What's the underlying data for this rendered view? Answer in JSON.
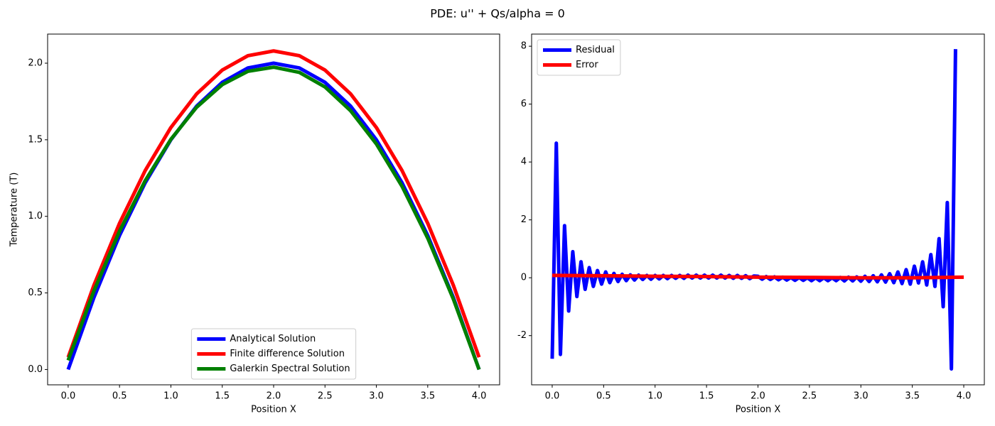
{
  "title": "PDE: u'' + Qs/alpha = 0",
  "chart_data": [
    {
      "type": "line",
      "xlabel": "Position X",
      "ylabel": "Temperature (T)",
      "xlim": [
        -0.2,
        4.2
      ],
      "ylim": [
        -0.1,
        2.19
      ],
      "xticks": [
        {
          "value": 0,
          "label": "0.0"
        },
        0.5,
        {
          "value": 1,
          "label": "1.0"
        },
        1.5,
        {
          "value": 2,
          "label": "2.0"
        },
        2.5,
        {
          "value": 3,
          "label": "3.0"
        },
        3.5,
        {
          "value": 4,
          "label": "4.0"
        }
      ],
      "yticks": [
        {
          "value": 0,
          "label": "0.0"
        },
        0.5,
        {
          "value": 1,
          "label": "1.0"
        },
        1.5,
        {
          "value": 2,
          "label": "2.0"
        }
      ],
      "legend": "lower center",
      "series": [
        {
          "name": "Analytical Solution",
          "color": "#0000ff",
          "x": [
            0,
            0.25,
            0.5,
            0.75,
            1,
            1.25,
            1.5,
            1.75,
            2,
            2.25,
            2.5,
            2.75,
            3,
            3.25,
            3.5,
            3.75,
            4
          ],
          "values": [
            0,
            0.469,
            0.875,
            1.219,
            1.5,
            1.719,
            1.875,
            1.969,
            2,
            1.969,
            1.875,
            1.719,
            1.5,
            1.219,
            0.875,
            0.469,
            0
          ]
        },
        {
          "name": "Finite difference Solution",
          "color": "#ff0000",
          "x": [
            0,
            0.25,
            0.5,
            0.75,
            1,
            1.25,
            1.5,
            1.75,
            2,
            2.25,
            2.5,
            2.75,
            3,
            3.25,
            3.5,
            3.75,
            4
          ],
          "values": [
            0.08,
            0.549,
            0.955,
            1.299,
            1.58,
            1.799,
            1.955,
            2.049,
            2.08,
            2.049,
            1.955,
            1.799,
            1.58,
            1.299,
            0.955,
            0.549,
            0.08
          ]
        },
        {
          "name": "Galerkin Spectral Solution",
          "color": "#008000",
          "x": [
            0,
            0.25,
            0.5,
            0.75,
            1,
            1.25,
            1.5,
            1.75,
            2,
            2.25,
            2.5,
            2.75,
            3,
            3.25,
            3.5,
            3.75,
            4
          ],
          "values": [
            0.06,
            0.512,
            0.903,
            1.233,
            1.503,
            1.712,
            1.86,
            1.947,
            1.974,
            1.94,
            1.845,
            1.689,
            1.473,
            1.196,
            0.858,
            0.459,
            0
          ]
        }
      ]
    },
    {
      "type": "line",
      "xlabel": "Position X",
      "xlim": [
        -0.2,
        4.2
      ],
      "ylim": [
        -3.7,
        8.42
      ],
      "xticks": [
        {
          "value": 0,
          "label": "0.0"
        },
        0.5,
        {
          "value": 1,
          "label": "1.0"
        },
        1.5,
        {
          "value": 2,
          "label": "2.0"
        },
        2.5,
        {
          "value": 3,
          "label": "3.0"
        },
        3.5,
        {
          "value": 4,
          "label": "4.0"
        }
      ],
      "yticks": [
        -2,
        0,
        2,
        4,
        6,
        8
      ],
      "legend": "upper left",
      "series": [
        {
          "name": "Residual",
          "color": "#0000ff",
          "x": [
            0,
            0.04,
            0.08,
            0.12,
            0.16,
            0.2,
            0.24,
            0.28,
            0.32,
            0.36,
            0.4,
            0.44,
            0.48,
            0.52,
            0.56,
            0.6,
            0.64,
            0.68,
            0.72,
            0.76,
            0.8,
            0.84,
            0.88,
            0.92,
            0.96,
            1,
            1.04,
            1.08,
            1.12,
            1.16,
            1.2,
            1.24,
            1.28,
            1.32,
            1.36,
            1.4,
            1.44,
            1.48,
            1.52,
            1.56,
            1.6,
            1.64,
            1.68,
            1.72,
            1.76,
            1.8,
            1.84,
            1.88,
            1.92,
            1.96,
            2,
            2.04,
            2.08,
            2.12,
            2.16,
            2.2,
            2.24,
            2.28,
            2.32,
            2.36,
            2.4,
            2.44,
            2.48,
            2.52,
            2.56,
            2.6,
            2.64,
            2.68,
            2.72,
            2.76,
            2.8,
            2.84,
            2.88,
            2.92,
            2.96,
            3,
            3.04,
            3.08,
            3.12,
            3.16,
            3.2,
            3.24,
            3.28,
            3.32,
            3.36,
            3.4,
            3.44,
            3.48,
            3.52,
            3.56,
            3.6,
            3.64,
            3.68,
            3.72,
            3.76,
            3.8,
            3.84,
            3.88,
            3.92
          ],
          "values": [
            -2.8,
            4.65,
            -2.65,
            1.8,
            -1.15,
            0.9,
            -0.65,
            0.55,
            -0.4,
            0.35,
            -0.3,
            0.25,
            -0.22,
            0.2,
            -0.17,
            0.15,
            -0.13,
            0.12,
            -0.1,
            0.1,
            -0.08,
            0.09,
            -0.06,
            0.08,
            -0.05,
            0.08,
            -0.04,
            0.08,
            -0.03,
            0.08,
            -0.02,
            0.08,
            -0.02,
            0.09,
            -0.01,
            0.09,
            -0.01,
            0.09,
            -0.01,
            0.09,
            -0.01,
            0.09,
            -0.01,
            0.08,
            -0.02,
            0.08,
            -0.02,
            0.07,
            -0.03,
            0.06,
            0.05,
            -0.05,
            0.04,
            -0.06,
            0.03,
            -0.07,
            0.02,
            -0.08,
            0.01,
            -0.09,
            0.01,
            -0.09,
            0,
            -0.1,
            0,
            -0.1,
            0,
            -0.1,
            0,
            -0.1,
            0.01,
            -0.11,
            0.02,
            -0.11,
            0.03,
            -0.12,
            0.05,
            -0.13,
            0.07,
            -0.14,
            0.1,
            -0.15,
            0.14,
            -0.17,
            0.2,
            -0.2,
            0.28,
            -0.22,
            0.4,
            -0.18,
            0.55,
            -0.25,
            0.8,
            -0.3,
            1.35,
            -1,
            2.6,
            -3.15,
            7.9
          ]
        },
        {
          "name": "Error",
          "color": "#ff0000",
          "x": [
            0,
            0.5,
            1,
            1.5,
            2,
            2.5,
            3,
            3.5,
            4
          ],
          "values": [
            0.08,
            0.07,
            0.05,
            0.04,
            0.02,
            0.01,
            0,
            0,
            0.02
          ]
        }
      ]
    }
  ]
}
